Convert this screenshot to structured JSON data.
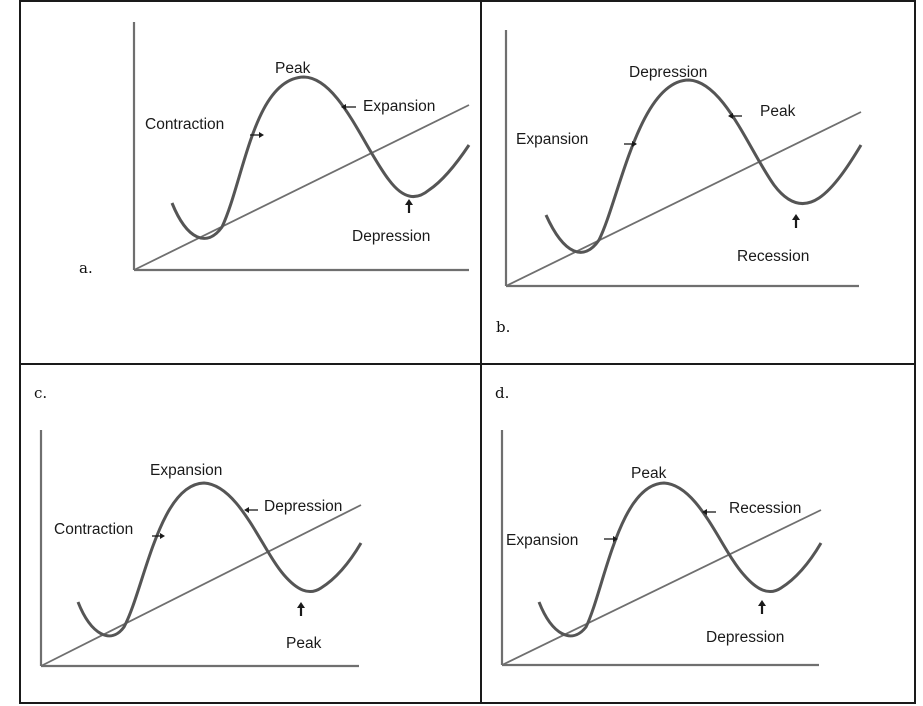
{
  "colors": {
    "curve": "#555555",
    "line": "#6f6f6f",
    "axis": "#6f6f6f",
    "border": "#1a1a1a",
    "text": "#1a1a1a"
  },
  "panels": [
    {
      "letter": "a.",
      "labels": {
        "peak": "Peak",
        "left": "Contraction",
        "right": "Expansion",
        "trough": "Depression"
      }
    },
    {
      "letter": "b.",
      "labels": {
        "peak": "Depression",
        "left": "Expansion",
        "right": "Peak",
        "trough": "Recession"
      }
    },
    {
      "letter": "c.",
      "labels": {
        "peak": "Expansion",
        "left": "Contraction",
        "right": "Depression",
        "trough": "Peak"
      }
    },
    {
      "letter": "d.",
      "labels": {
        "peak": "Peak",
        "left": "Expansion",
        "right": "Recession",
        "trough": "Depression"
      }
    }
  ]
}
